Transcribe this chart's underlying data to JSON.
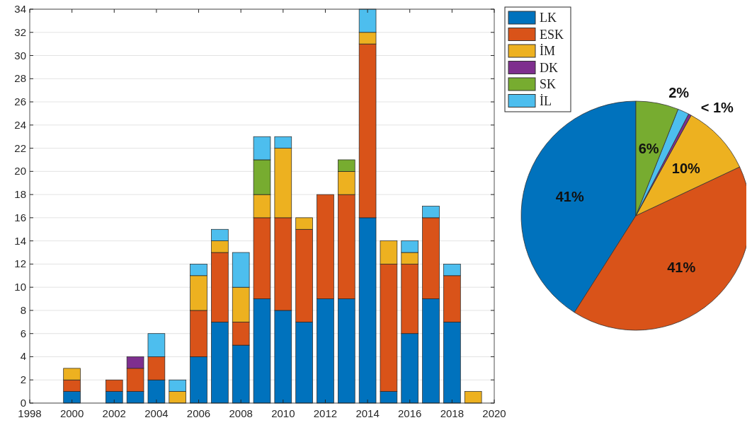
{
  "chart_data": [
    {
      "type": "bar",
      "stacked": true,
      "x": [
        2000,
        2001,
        2002,
        2003,
        2004,
        2005,
        2006,
        2007,
        2008,
        2009,
        2010,
        2011,
        2012,
        2013,
        2014,
        2015,
        2016,
        2017,
        2018,
        2019
      ],
      "series": [
        {
          "name": "LK",
          "color": "#0072bd",
          "values": [
            1,
            0,
            1,
            1,
            2,
            0,
            4,
            7,
            5,
            9,
            8,
            7,
            9,
            9,
            16,
            1,
            6,
            9,
            7,
            0
          ]
        },
        {
          "name": "ESK",
          "color": "#d95319",
          "values": [
            1,
            0,
            1,
            2,
            2,
            0,
            4,
            6,
            2,
            7,
            8,
            8,
            9,
            9,
            15,
            11,
            6,
            7,
            4,
            0
          ]
        },
        {
          "name": "İM",
          "color": "#edb120",
          "values": [
            1,
            0,
            0,
            0,
            0,
            1,
            3,
            1,
            3,
            2,
            6,
            1,
            0,
            2,
            1,
            2,
            1,
            0,
            0,
            1
          ]
        },
        {
          "name": "DK",
          "color": "#7e2f8e",
          "values": [
            0,
            0,
            0,
            1,
            0,
            0,
            0,
            0,
            0,
            0,
            0,
            0,
            0,
            0,
            0,
            0,
            0,
            0,
            0,
            0
          ]
        },
        {
          "name": "SK",
          "color": "#77ac30",
          "values": [
            0,
            0,
            0,
            0,
            0,
            0,
            0,
            0,
            0,
            3,
            0,
            0,
            0,
            1,
            0,
            0,
            0,
            0,
            0,
            0
          ]
        },
        {
          "name": "İL",
          "color": "#4dbeee",
          "values": [
            0,
            0,
            0,
            0,
            2,
            1,
            1,
            1,
            3,
            2,
            1,
            0,
            0,
            0,
            2,
            0,
            1,
            1,
            1,
            0
          ]
        }
      ],
      "xlim": [
        1998,
        2020
      ],
      "xticks": [
        1998,
        2000,
        2002,
        2004,
        2006,
        2008,
        2010,
        2012,
        2014,
        2016,
        2018,
        2020
      ],
      "ylim": [
        0,
        34
      ],
      "yticks": [
        0,
        2,
        4,
        6,
        8,
        10,
        12,
        14,
        16,
        18,
        20,
        22,
        24,
        26,
        28,
        30,
        32,
        34
      ],
      "grid": "y",
      "legend": "top right"
    },
    {
      "type": "pie",
      "categories": [
        null,
        null,
        null,
        null,
        null,
        null
      ],
      "values": [
        41,
        41,
        10,
        0.4,
        1.6,
        6
      ],
      "colors": [
        "#0072bd",
        "#d95319",
        "#edb120",
        "#7e2f8e",
        "#4dbeee",
        "#77ac30"
      ],
      "value_labels": [
        "41%",
        "41%",
        "10%",
        "< 1%",
        "2%",
        "6%"
      ]
    }
  ]
}
